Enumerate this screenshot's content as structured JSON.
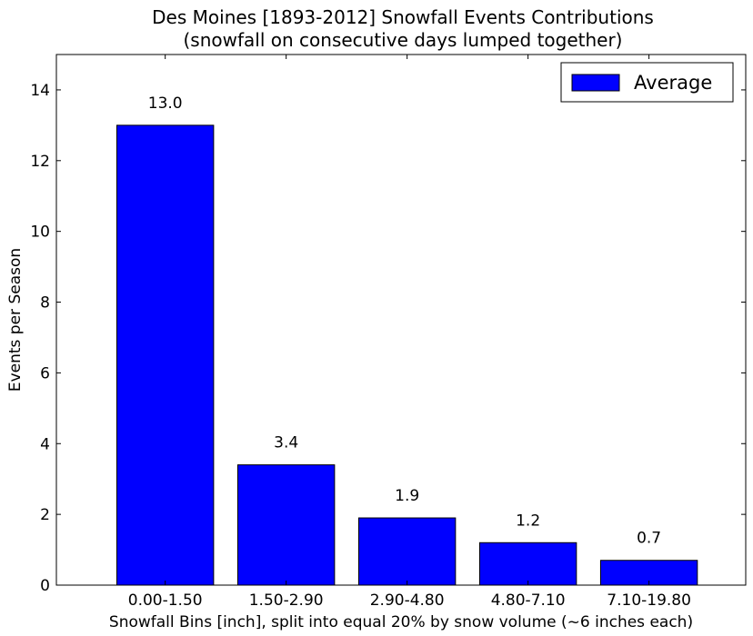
{
  "chart_data": {
    "type": "bar",
    "title": "Des Moines [1893-2012] Snowfall Events Contributions",
    "subtitle": "(snowfall on consecutive days lumped together)",
    "xlabel": "Snowfall Bins [inch], split into equal 20% by snow volume (~6 inches each)",
    "ylabel": "Events per Season",
    "categories": [
      "0.00-1.50",
      "1.50-2.90",
      "2.90-4.80",
      "4.80-7.10",
      "7.10-19.80"
    ],
    "series": [
      {
        "name": "Average",
        "values": [
          13.0,
          3.4,
          1.9,
          1.2,
          0.7
        ],
        "color": "#0000ff"
      }
    ],
    "data_labels": [
      "13.0",
      "3.4",
      "1.9",
      "1.2",
      "0.7"
    ],
    "ylim": [
      0,
      15
    ],
    "yticks": [
      0,
      2,
      4,
      6,
      8,
      10,
      12,
      14
    ],
    "ytick_labels": [
      "0",
      "2",
      "4",
      "6",
      "8",
      "10",
      "12",
      "14"
    ],
    "xlim": [
      -0.5,
      5.2
    ],
    "grid": false,
    "legend_position": "top-right"
  }
}
